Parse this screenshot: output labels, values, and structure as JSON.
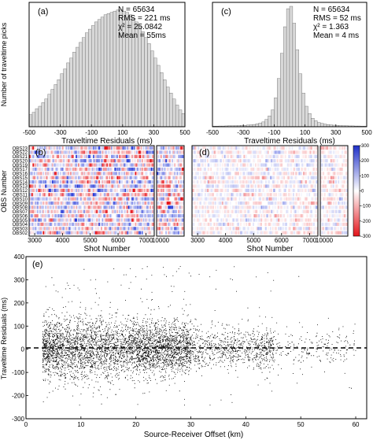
{
  "chart_data": [
    {
      "panel": "(a)",
      "type": "bar",
      "xlabel": "Traveltime Residuals (ms)",
      "ylabel": "Number of traveltime picks",
      "xlim": [
        -500,
        500
      ],
      "xticks": [
        "-500",
        "-300",
        "-100",
        "100",
        "300",
        "500"
      ],
      "stats": [
        "N = 65634",
        "RMS = 221 ms",
        "χ² = 25.0842",
        "Mean = 55ms"
      ],
      "bin_width_ms": 20,
      "bin_centers": [
        -490,
        -470,
        -450,
        -430,
        -410,
        -390,
        -370,
        -350,
        -330,
        -310,
        -290,
        -270,
        -250,
        -230,
        -210,
        -190,
        -170,
        -150,
        -130,
        -110,
        -90,
        -70,
        -50,
        -30,
        -10,
        10,
        30,
        50,
        70,
        90,
        110,
        130,
        150,
        170,
        190,
        210,
        230,
        250,
        270,
        290,
        310,
        330,
        350,
        370,
        390,
        410,
        430,
        450,
        470,
        490
      ],
      "relative_counts": [
        0.1,
        0.12,
        0.15,
        0.17,
        0.2,
        0.23,
        0.27,
        0.31,
        0.35,
        0.39,
        0.44,
        0.48,
        0.53,
        0.57,
        0.62,
        0.66,
        0.7,
        0.74,
        0.78,
        0.81,
        0.84,
        0.87,
        0.89,
        0.91,
        0.93,
        0.94,
        0.95,
        0.96,
        0.97,
        0.97,
        0.96,
        0.95,
        0.93,
        0.9,
        0.87,
        0.83,
        0.79,
        0.74,
        0.69,
        0.63,
        0.57,
        0.51,
        0.45,
        0.39,
        0.33,
        0.28,
        0.23,
        0.18,
        0.14,
        0.11
      ],
      "grid": false
    },
    {
      "panel": "(c)",
      "type": "bar",
      "xlabel": "Traveltime Residuals (ms)",
      "xlim": [
        -500,
        500
      ],
      "xticks": [
        "-500",
        "-300",
        "-100",
        "100",
        "300",
        "500"
      ],
      "stats": [
        "N = 65634",
        "RMS = 52 ms",
        "χ² = 1.363",
        "Mean = 4 ms"
      ],
      "bin_width_ms": 20,
      "bin_centers": [
        -490,
        -470,
        -450,
        -430,
        -410,
        -390,
        -370,
        -350,
        -330,
        -310,
        -290,
        -270,
        -250,
        -230,
        -210,
        -190,
        -170,
        -150,
        -130,
        -110,
        -90,
        -70,
        -50,
        -30,
        -10,
        10,
        30,
        50,
        70,
        90,
        110,
        130,
        150,
        170,
        190,
        210,
        230,
        250,
        270,
        290,
        310,
        330,
        350,
        370,
        390,
        410,
        430,
        450,
        470,
        490
      ],
      "relative_counts": [
        0.005,
        0.005,
        0.006,
        0.006,
        0.007,
        0.008,
        0.008,
        0.009,
        0.01,
        0.011,
        0.012,
        0.014,
        0.016,
        0.019,
        0.024,
        0.03,
        0.04,
        0.06,
        0.09,
        0.14,
        0.24,
        0.4,
        0.61,
        0.83,
        0.98,
        1.0,
        0.86,
        0.64,
        0.44,
        0.28,
        0.17,
        0.11,
        0.07,
        0.05,
        0.035,
        0.028,
        0.022,
        0.018,
        0.015,
        0.013,
        0.011,
        0.01,
        0.009,
        0.008,
        0.007,
        0.007,
        0.006,
        0.006,
        0.005,
        0.005
      ],
      "grid": false
    },
    {
      "panel": "(b)",
      "type": "heatmap",
      "xlabel": "Shot Number",
      "ylabel": "OBS Number",
      "rows": [
        "OBS23",
        "OBS22",
        "OBS21",
        "OBS20",
        "OBS19",
        "OBS17",
        "OBS16",
        "OBS15",
        "OBS14",
        "OBS13",
        "OBS12",
        "OBS11",
        "OBS10",
        "OBS09",
        "OBS08",
        "OBS07",
        "OBS06",
        "OBS05",
        "OBS04",
        "OBS03",
        "OBS02"
      ],
      "xlim_main": [
        2800,
        7300
      ],
      "xlim_tail": [
        9900,
        10600
      ],
      "xticks_main": [
        "3000",
        "4000",
        "5000",
        "6000",
        "7000"
      ],
      "xticks_tail": [
        "10000"
      ],
      "colors": {
        "positive": "#2b3fd6",
        "negative": "#e8151b",
        "zero": "#ffffff"
      }
    },
    {
      "panel": "(d)",
      "type": "heatmap",
      "xlabel": "Shot Number",
      "rows": [
        "OBS23",
        "OBS22",
        "OBS21",
        "OBS20",
        "OBS19",
        "OBS17",
        "OBS16",
        "OBS15",
        "OBS14",
        "OBS13",
        "OBS12",
        "OBS11",
        "OBS10",
        "OBS09",
        "OBS08",
        "OBS07",
        "OBS06",
        "OBS05",
        "OBS04",
        "OBS03",
        "OBS02"
      ],
      "xlim_main": [
        2800,
        7300
      ],
      "xlim_tail": [
        9900,
        10600
      ],
      "xticks_main": [
        "3000",
        "4000",
        "5000",
        "6000",
        "7000"
      ],
      "xticks_tail": [
        "10000"
      ],
      "colorbar": {
        "range": [
          -300,
          300
        ],
        "ticks": [
          "300",
          "200",
          "100",
          "0",
          "-100",
          "-200",
          "-300"
        ]
      }
    },
    {
      "panel": "(e)",
      "type": "scatter",
      "xlabel": "Source-Receiver Offset (km)",
      "ylabel": "Traveltime Residuals (ms)",
      "xlim": [
        0,
        62
      ],
      "ylim": [
        -300,
        400
      ],
      "xticks": [
        "0",
        "10",
        "20",
        "30",
        "40",
        "50",
        "60"
      ],
      "yticks": [
        "400",
        "300",
        "200",
        "100",
        "0",
        "-100",
        "-200",
        "-300"
      ],
      "reference_line_y": 0,
      "reference_line_style": "dashed"
    }
  ]
}
